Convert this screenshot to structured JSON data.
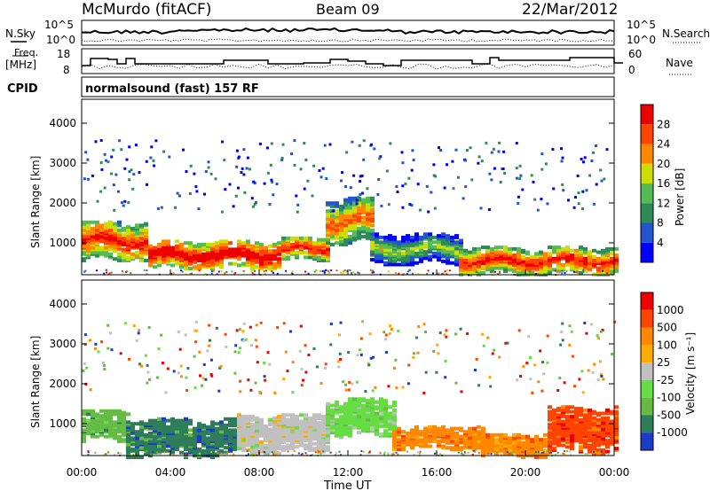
{
  "header": {
    "station": "McMurdo (fitACF)",
    "beam": "Beam 09",
    "date": "22/Mar/2012"
  },
  "noise_panel": {
    "left_label": "N.Sky",
    "left_ticks": [
      "10^5",
      "10^0"
    ],
    "right_label": "N.Search",
    "right_ticks": [
      "10^5",
      "10^0"
    ]
  },
  "freq_panel": {
    "left_label_1": "Freq.",
    "left_label_2": "[MHz]",
    "left_ticks": [
      "18",
      "8"
    ],
    "right_label": "Nave",
    "right_ticks": [
      "60",
      "0"
    ]
  },
  "cpid": {
    "label": "CPID",
    "value": "normalsound (fast) 157 RF"
  },
  "power_panel": {
    "ylabel": "Slant Range [km]",
    "yticks": [
      "4000",
      "3000",
      "2000",
      "1000"
    ],
    "colorbar_label": "Power [dB]",
    "colorbar_ticks": [
      "28",
      "24",
      "20",
      "16",
      "12",
      "8",
      "4"
    ],
    "colors": [
      "#0000ff",
      "#2255cc",
      "#2e8b57",
      "#55bb55",
      "#ccdd00",
      "#ff8800",
      "#ff4400",
      "#ee0000"
    ]
  },
  "velocity_panel": {
    "ylabel": "Slant Range [km]",
    "yticks": [
      "4000",
      "3000",
      "2000",
      "1000"
    ],
    "colorbar_label": "Velocity [m s⁻¹]",
    "colorbar_ticks": [
      "1000",
      "500",
      "100",
      "25",
      "-25",
      "-100",
      "-500",
      "-1000"
    ],
    "colors": [
      "#1a3cc8",
      "#2e7d5a",
      "#66bb44",
      "#66dd44",
      "#c0c0c0",
      "#ffaa00",
      "#ff8800",
      "#ff4400",
      "#ee0000"
    ]
  },
  "x_axis": {
    "ticks": [
      "00:00",
      "04:00",
      "08:00",
      "12:00",
      "16:00",
      "20:00",
      "00:00"
    ],
    "label": "Time UT"
  },
  "chart_data": {
    "type": "heatmap",
    "title": "McMurdo (fitACF) Beam 09 22/Mar/2012",
    "x_axis": {
      "label": "Time UT",
      "range_hours": [
        0,
        24
      ]
    },
    "y_axis": {
      "label": "Slant Range [km]",
      "range": [
        200,
        4600
      ]
    },
    "power_bands": [
      {
        "from": 0,
        "to": 3,
        "center": 1100,
        "width": 500,
        "level": 7
      },
      {
        "from": 3,
        "to": 9,
        "center": 750,
        "width": 350,
        "level": 8
      },
      {
        "from": 9,
        "to": 11,
        "center": 900,
        "width": 300,
        "level": 7
      },
      {
        "from": 11,
        "to": 13,
        "center": 1600,
        "width": 600,
        "level": 6
      },
      {
        "from": 13,
        "to": 17,
        "center": 900,
        "width": 400,
        "level": 4
      },
      {
        "from": 17,
        "to": 24,
        "center": 600,
        "width": 350,
        "level": 7
      }
    ],
    "velocity_bands": [
      {
        "from": 0,
        "to": 2,
        "center": 1000,
        "width": 400,
        "color_index": 2
      },
      {
        "from": 2,
        "to": 7,
        "center": 700,
        "width": 500,
        "color_index": 1
      },
      {
        "from": 7,
        "to": 11,
        "center": 800,
        "width": 500,
        "color_index": 4
      },
      {
        "from": 11,
        "to": 14,
        "center": 1200,
        "width": 500,
        "color_index": 3
      },
      {
        "from": 14,
        "to": 18,
        "center": 700,
        "width": 300,
        "color_index": 6
      },
      {
        "from": 18,
        "to": 21,
        "center": 500,
        "width": 300,
        "color_index": 6
      },
      {
        "from": 21,
        "to": 24,
        "center": 900,
        "width": 600,
        "color_index": 7
      }
    ]
  }
}
